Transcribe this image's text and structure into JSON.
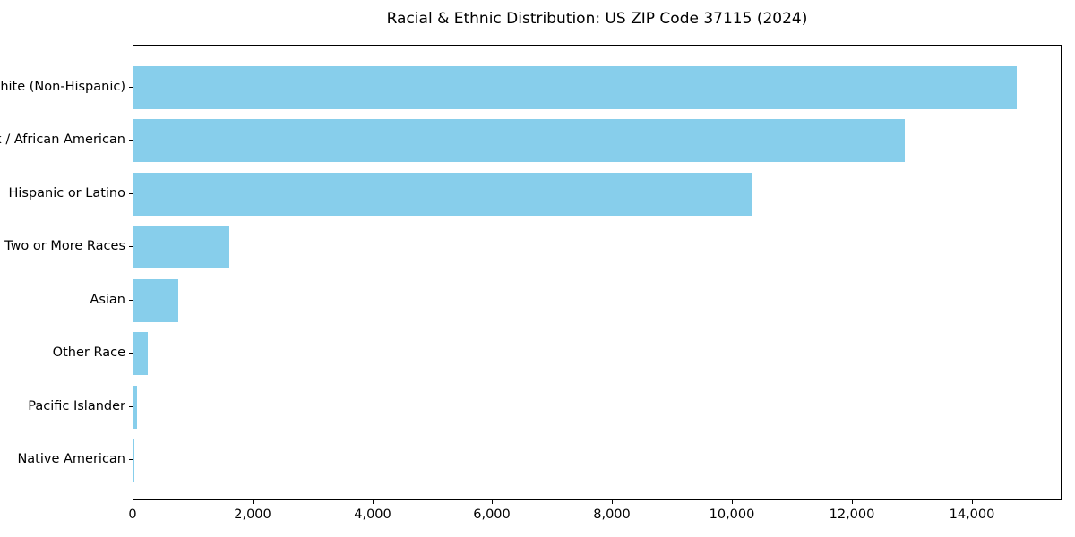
{
  "chart_data": {
    "type": "bar",
    "orientation": "horizontal",
    "title": "Racial & Ethnic Distribution: US ZIP Code 37115 (2024)",
    "categories": [
      "White (Non-Hispanic)",
      "Black / African American",
      "Hispanic or Latino",
      "Two or More Races",
      "Asian",
      "Other Race",
      "Pacific Islander",
      "Native American"
    ],
    "values": [
      14770,
      12900,
      10350,
      1600,
      755,
      240,
      55,
      15
    ],
    "xlabel": "",
    "ylabel": "",
    "xlim": [
      0,
      15500
    ],
    "x_ticks": [
      0,
      2000,
      4000,
      6000,
      8000,
      10000,
      12000,
      14000
    ],
    "x_tick_labels": [
      "0",
      "2,000",
      "4,000",
      "6,000",
      "8,000",
      "10,000",
      "12,000",
      "14,000"
    ],
    "bar_color": "#87CEEB",
    "background_color": "#FFFFFF",
    "axis_color": "#000000",
    "grid": false,
    "legend": false
  }
}
